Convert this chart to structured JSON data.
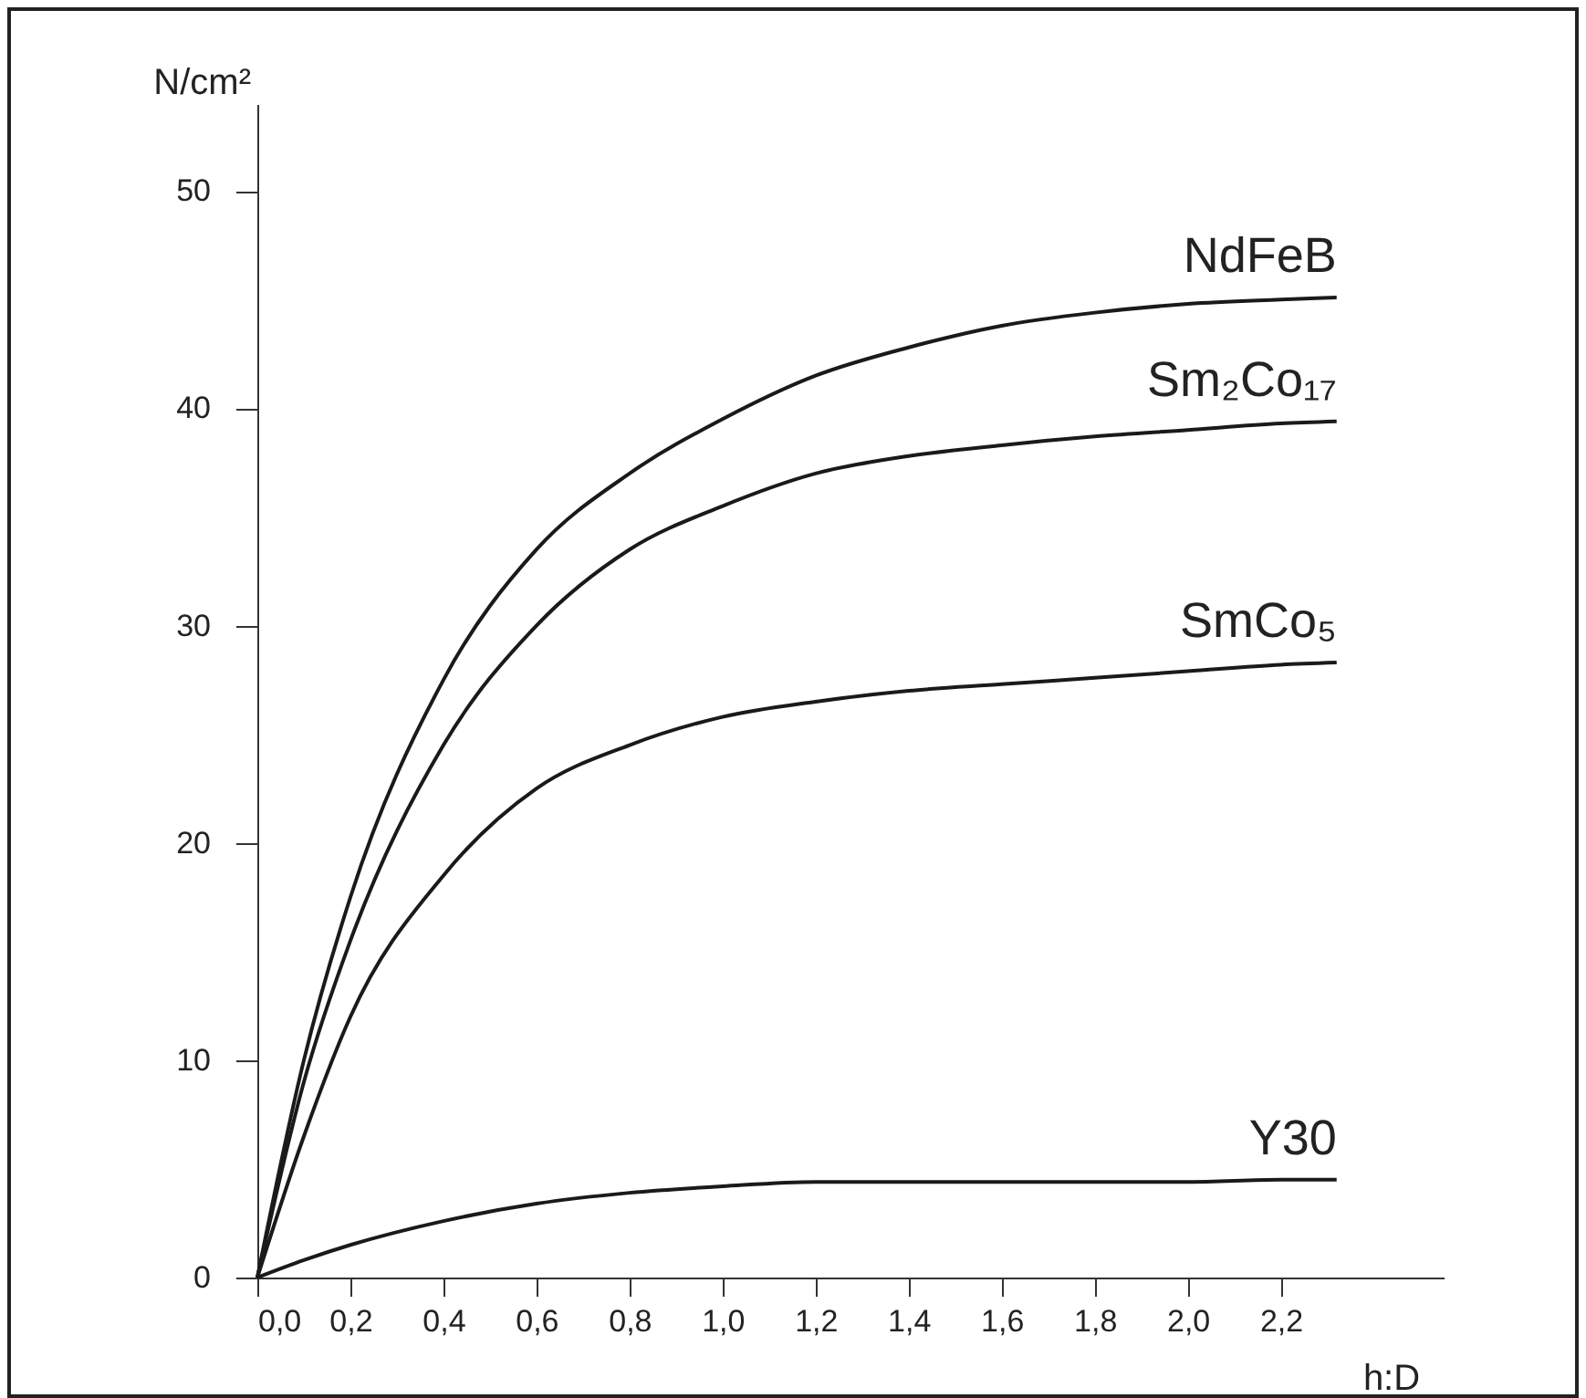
{
  "chart_data": {
    "type": "line",
    "xlabel": "h:D",
    "ylabel": "N/cm²",
    "x": [
      0,
      0.1,
      0.2,
      0.4,
      0.6,
      0.8,
      1.0,
      1.2,
      1.4,
      1.6,
      1.8,
      2.0,
      2.2,
      2.32
    ],
    "series": [
      {
        "name": "NdFeB",
        "color": "#1a1a1a",
        "values": [
          0,
          10,
          17.5,
          27.5,
          33.5,
          37,
          39.5,
          41.5,
          42.8,
          43.8,
          44.4,
          44.8,
          45,
          45.1
        ]
      },
      {
        "name": "Sm₂Co₁₇",
        "color": "#1a1a1a",
        "values": [
          0,
          9,
          15.5,
          24.5,
          30,
          33.5,
          35.5,
          37,
          37.8,
          38.3,
          38.7,
          39,
          39.3,
          39.4
        ]
      },
      {
        "name": "SmCo₅",
        "color": "#1a1a1a",
        "values": [
          0,
          6.5,
          12,
          18.5,
          22.5,
          24.5,
          25.8,
          26.5,
          27,
          27.3,
          27.6,
          27.9,
          28.2,
          28.3
        ]
      },
      {
        "name": "Y30",
        "color": "#1a1a1a",
        "values": [
          0,
          0.8,
          1.5,
          2.6,
          3.4,
          3.9,
          4.2,
          4.4,
          4.4,
          4.4,
          4.4,
          4.4,
          4.5,
          4.5
        ]
      }
    ],
    "xlim": [
      0,
      2.55
    ],
    "ylim": [
      0,
      54
    ],
    "xticks": [
      {
        "value": 0,
        "label": "0,0"
      },
      {
        "value": 0.2,
        "label": "0,2"
      },
      {
        "value": 0.4,
        "label": "0,4"
      },
      {
        "value": 0.6,
        "label": "0,6"
      },
      {
        "value": 0.8,
        "label": "0,8"
      },
      {
        "value": 1.0,
        "label": "1,0"
      },
      {
        "value": 1.2,
        "label": "1,2"
      },
      {
        "value": 1.4,
        "label": "1,4"
      },
      {
        "value": 1.6,
        "label": "1,6"
      },
      {
        "value": 1.8,
        "label": "1,8"
      },
      {
        "value": 2.0,
        "label": "2,0"
      },
      {
        "value": 2.2,
        "label": "2,2"
      }
    ],
    "yticks": [
      0,
      10,
      20,
      30,
      40,
      50
    ],
    "grid": false,
    "marker": "none",
    "line_style": "solid"
  }
}
